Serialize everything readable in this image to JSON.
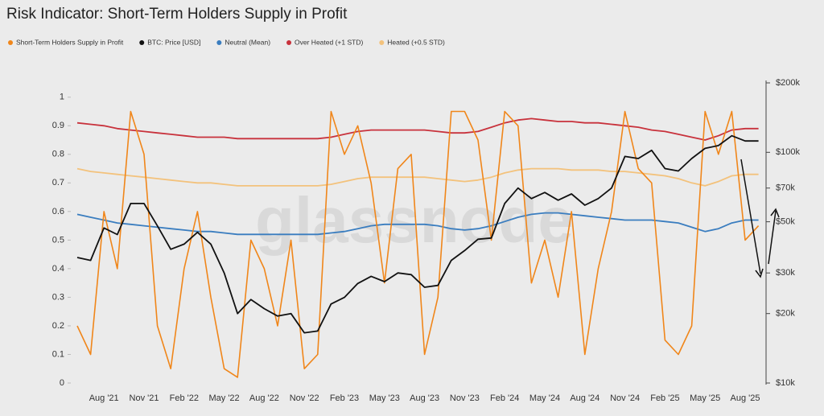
{
  "chart_data": {
    "type": "line",
    "title": "Risk Indicator: Short-Term Holders Supply in Profit",
    "watermark": "glassnode",
    "categories": [
      null,
      null,
      "Aug '21",
      null,
      null,
      "Nov '21",
      null,
      null,
      "Feb '22",
      null,
      null,
      "May '22",
      null,
      null,
      "Aug '22",
      null,
      null,
      "Nov '22",
      null,
      null,
      "Feb '23",
      null,
      null,
      "May '23",
      null,
      null,
      "Aug '23",
      null,
      null,
      "Nov '23",
      null,
      null,
      "Feb '24",
      null,
      null,
      "May '24",
      null,
      null,
      "Aug '24",
      null,
      null,
      "Nov '24",
      null,
      null,
      "Feb '25",
      null,
      null,
      "May '25",
      null,
      null,
      "Aug '25",
      null
    ],
    "series": [
      {
        "name": "Short-Term Holders Supply in Profit",
        "color": "#f0861a",
        "axis": "y",
        "values": [
          0.2,
          0.1,
          0.6,
          0.4,
          0.95,
          0.8,
          0.2,
          0.05,
          0.4,
          0.6,
          0.3,
          0.05,
          0.02,
          0.5,
          0.4,
          0.2,
          0.5,
          0.05,
          0.1,
          0.95,
          0.8,
          0.9,
          0.7,
          0.35,
          0.75,
          0.8,
          0.1,
          0.3,
          0.95,
          0.95,
          0.85,
          0.5,
          0.95,
          0.9,
          0.35,
          0.5,
          0.3,
          0.6,
          0.1,
          0.4,
          0.6,
          0.95,
          0.75,
          0.7,
          0.15,
          0.1,
          0.2,
          0.95,
          0.8,
          0.95,
          0.5,
          0.55
        ]
      },
      {
        "name": "BTC: Price [USD]",
        "color": "#111111",
        "axis": "y2",
        "values": [
          35000,
          34000,
          47000,
          44000,
          60000,
          60000,
          48000,
          38000,
          40000,
          45000,
          40000,
          30000,
          20000,
          23000,
          21000,
          19500,
          20000,
          16500,
          16800,
          22000,
          23500,
          27000,
          29000,
          27500,
          30000,
          29500,
          26000,
          26500,
          34000,
          37500,
          42000,
          42500,
          60000,
          70000,
          63000,
          67000,
          62000,
          66000,
          59000,
          63000,
          70000,
          96000,
          94000,
          102000,
          85000,
          83000,
          94000,
          104000,
          107000,
          118000,
          112000,
          112000
        ]
      },
      {
        "name": "Neutral (Mean)",
        "color": "#3a7dbf",
        "axis": "y",
        "values": [
          0.59,
          0.58,
          0.57,
          0.56,
          0.555,
          0.55,
          0.545,
          0.54,
          0.535,
          0.53,
          0.53,
          0.525,
          0.52,
          0.52,
          0.52,
          0.52,
          0.52,
          0.52,
          0.52,
          0.525,
          0.53,
          0.54,
          0.55,
          0.555,
          0.555,
          0.555,
          0.555,
          0.55,
          0.54,
          0.535,
          0.54,
          0.55,
          0.565,
          0.58,
          0.59,
          0.595,
          0.595,
          0.59,
          0.585,
          0.58,
          0.575,
          0.57,
          0.57,
          0.57,
          0.565,
          0.56,
          0.545,
          0.53,
          0.54,
          0.56,
          0.57,
          0.57
        ]
      },
      {
        "name": "Over Heated (+1 STD)",
        "color": "#c8323c",
        "axis": "y",
        "values": [
          0.91,
          0.905,
          0.9,
          0.89,
          0.885,
          0.88,
          0.875,
          0.87,
          0.865,
          0.86,
          0.86,
          0.86,
          0.855,
          0.855,
          0.855,
          0.855,
          0.855,
          0.855,
          0.855,
          0.86,
          0.87,
          0.88,
          0.885,
          0.885,
          0.885,
          0.885,
          0.885,
          0.88,
          0.875,
          0.875,
          0.88,
          0.895,
          0.91,
          0.92,
          0.925,
          0.92,
          0.915,
          0.915,
          0.91,
          0.91,
          0.905,
          0.9,
          0.895,
          0.885,
          0.88,
          0.87,
          0.86,
          0.85,
          0.865,
          0.885,
          0.89,
          0.89
        ]
      },
      {
        "name": "Heated (+0.5 STD)",
        "color": "#f3c27c",
        "axis": "y",
        "values": [
          0.75,
          0.74,
          0.735,
          0.73,
          0.725,
          0.72,
          0.715,
          0.71,
          0.705,
          0.7,
          0.7,
          0.695,
          0.69,
          0.69,
          0.69,
          0.69,
          0.69,
          0.69,
          0.69,
          0.695,
          0.705,
          0.715,
          0.72,
          0.72,
          0.72,
          0.72,
          0.72,
          0.715,
          0.71,
          0.705,
          0.71,
          0.72,
          0.735,
          0.745,
          0.75,
          0.75,
          0.75,
          0.745,
          0.745,
          0.745,
          0.74,
          0.74,
          0.735,
          0.73,
          0.725,
          0.715,
          0.7,
          0.69,
          0.705,
          0.725,
          0.73,
          0.73
        ]
      }
    ],
    "ylim": [
      0,
      1.05
    ],
    "yticks": [
      0,
      0.1,
      0.2,
      0.3,
      0.4,
      0.5,
      0.6,
      0.7,
      0.8,
      0.9,
      1
    ],
    "y2lim": [
      10000,
      200000
    ],
    "y2ticks": [
      {
        "value": 10000,
        "label": "$10k"
      },
      {
        "value": 20000,
        "label": "$20k"
      },
      {
        "value": 30000,
        "label": "$30k"
      },
      {
        "value": 50000,
        "label": "$50k"
      },
      {
        "value": 70000,
        "label": "$70k"
      },
      {
        "value": 100000,
        "label": "$100k"
      },
      {
        "value": 200000,
        "label": "$200k"
      }
    ],
    "y2log": true,
    "grid": false,
    "legend": "top-left"
  }
}
